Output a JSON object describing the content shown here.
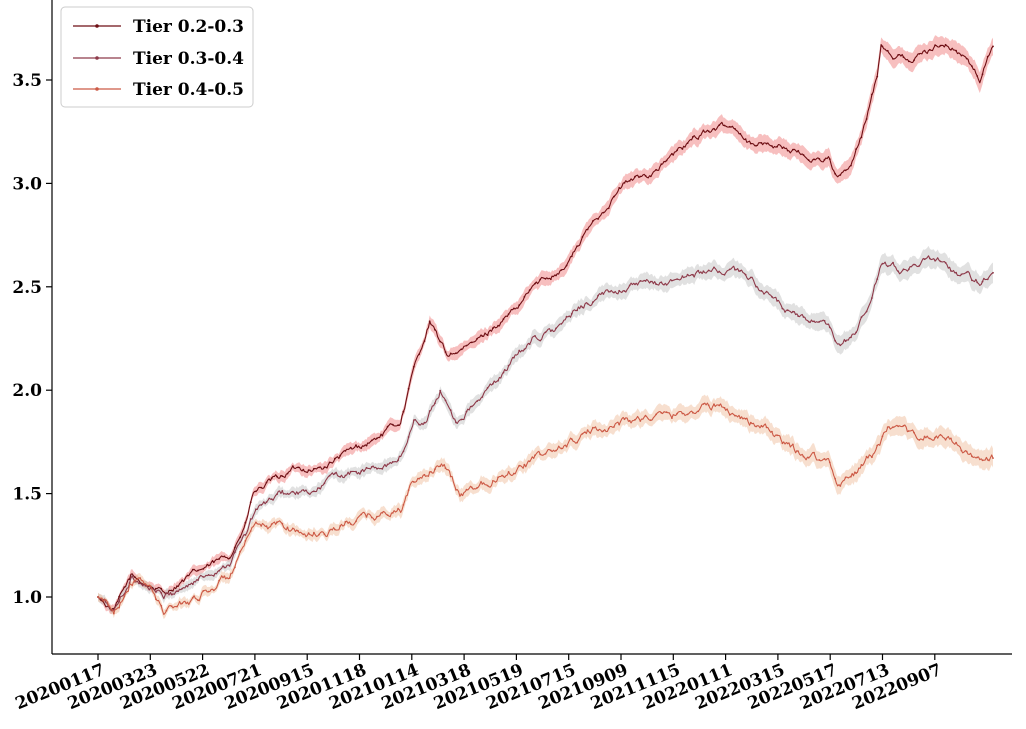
{
  "chart_data": {
    "type": "line",
    "title": "",
    "xlabel": "",
    "ylabel": "",
    "x_ticks": [
      "20200117",
      "20200323",
      "20200522",
      "20200721",
      "20200915",
      "20201118",
      "20210114",
      "20210318",
      "20210519",
      "20210715",
      "20210909",
      "20211115",
      "20220111",
      "20220315",
      "20220517",
      "20220713",
      "20220907"
    ],
    "y_ticks": [
      "1.0",
      "1.5",
      "2.0",
      "2.5",
      "3.0",
      "3.5"
    ],
    "ylim": [
      0.75,
      3.78
    ],
    "n_points": 680,
    "grid": false,
    "legend": "top-left",
    "series": [
      {
        "name": "Tier 0.2-0.3",
        "color": "#6e0f14",
        "band_color": "#f08080",
        "anchors": [
          [
            0,
            1.0
          ],
          [
            12,
            0.93
          ],
          [
            25,
            1.1
          ],
          [
            38,
            1.06
          ],
          [
            50,
            1.02
          ],
          [
            75,
            1.12
          ],
          [
            100,
            1.2
          ],
          [
            112,
            1.35
          ],
          [
            118,
            1.5
          ],
          [
            130,
            1.55
          ],
          [
            150,
            1.62
          ],
          [
            170,
            1.62
          ],
          [
            190,
            1.7
          ],
          [
            210,
            1.76
          ],
          [
            230,
            1.85
          ],
          [
            240,
            2.1
          ],
          [
            252,
            2.33
          ],
          [
            265,
            2.17
          ],
          [
            282,
            2.21
          ],
          [
            300,
            2.3
          ],
          [
            320,
            2.4
          ],
          [
            330,
            2.5
          ],
          [
            355,
            2.6
          ],
          [
            375,
            2.8
          ],
          [
            400,
            3.0
          ],
          [
            420,
            3.05
          ],
          [
            440,
            3.15
          ],
          [
            460,
            3.25
          ],
          [
            475,
            3.27
          ],
          [
            485,
            3.27
          ],
          [
            495,
            3.2
          ],
          [
            520,
            3.18
          ],
          [
            540,
            3.12
          ],
          [
            555,
            3.12
          ],
          [
            562,
            3.02
          ],
          [
            572,
            3.08
          ],
          [
            580,
            3.22
          ],
          [
            592,
            3.52
          ],
          [
            595,
            3.68
          ],
          [
            605,
            3.62
          ],
          [
            620,
            3.6
          ],
          [
            640,
            3.68
          ],
          [
            650,
            3.65
          ],
          [
            660,
            3.6
          ],
          [
            670,
            3.5
          ],
          [
            680,
            3.67
          ]
        ]
      },
      {
        "name": "Tier 0.3-0.4",
        "color": "#8e3a4a",
        "band_color": "#c8c8c8",
        "anchors": [
          [
            0,
            1.0
          ],
          [
            12,
            0.93
          ],
          [
            25,
            1.09
          ],
          [
            38,
            1.06
          ],
          [
            50,
            1.0
          ],
          [
            75,
            1.08
          ],
          [
            100,
            1.17
          ],
          [
            112,
            1.3
          ],
          [
            120,
            1.42
          ],
          [
            140,
            1.5
          ],
          [
            165,
            1.5
          ],
          [
            175,
            1.57
          ],
          [
            195,
            1.6
          ],
          [
            220,
            1.63
          ],
          [
            232,
            1.7
          ],
          [
            240,
            1.85
          ],
          [
            250,
            1.85
          ],
          [
            260,
            2.0
          ],
          [
            272,
            1.85
          ],
          [
            290,
            1.95
          ],
          [
            310,
            2.1
          ],
          [
            330,
            2.25
          ],
          [
            350,
            2.3
          ],
          [
            370,
            2.42
          ],
          [
            400,
            2.5
          ],
          [
            430,
            2.52
          ],
          [
            460,
            2.57
          ],
          [
            480,
            2.58
          ],
          [
            495,
            2.55
          ],
          [
            510,
            2.45
          ],
          [
            530,
            2.35
          ],
          [
            545,
            2.33
          ],
          [
            555,
            2.3
          ],
          [
            562,
            2.2
          ],
          [
            575,
            2.28
          ],
          [
            585,
            2.4
          ],
          [
            595,
            2.6
          ],
          [
            610,
            2.58
          ],
          [
            625,
            2.62
          ],
          [
            640,
            2.63
          ],
          [
            650,
            2.58
          ],
          [
            660,
            2.55
          ],
          [
            670,
            2.52
          ],
          [
            680,
            2.58
          ]
        ]
      },
      {
        "name": "Tier 0.4-0.5",
        "color": "#cc5a46",
        "band_color": "#f0c0a0",
        "anchors": [
          [
            0,
            1.0
          ],
          [
            12,
            0.93
          ],
          [
            25,
            1.08
          ],
          [
            38,
            1.06
          ],
          [
            50,
            0.93
          ],
          [
            75,
            1.0
          ],
          [
            100,
            1.1
          ],
          [
            112,
            1.25
          ],
          [
            120,
            1.33
          ],
          [
            140,
            1.35
          ],
          [
            160,
            1.3
          ],
          [
            175,
            1.32
          ],
          [
            200,
            1.38
          ],
          [
            230,
            1.42
          ],
          [
            240,
            1.55
          ],
          [
            255,
            1.62
          ],
          [
            265,
            1.62
          ],
          [
            275,
            1.5
          ],
          [
            290,
            1.55
          ],
          [
            310,
            1.6
          ],
          [
            330,
            1.66
          ],
          [
            350,
            1.72
          ],
          [
            375,
            1.8
          ],
          [
            400,
            1.85
          ],
          [
            420,
            1.87
          ],
          [
            440,
            1.88
          ],
          [
            460,
            1.92
          ],
          [
            475,
            1.92
          ],
          [
            495,
            1.85
          ],
          [
            510,
            1.8
          ],
          [
            530,
            1.7
          ],
          [
            545,
            1.68
          ],
          [
            555,
            1.65
          ],
          [
            562,
            1.55
          ],
          [
            575,
            1.6
          ],
          [
            590,
            1.7
          ],
          [
            600,
            1.8
          ],
          [
            620,
            1.78
          ],
          [
            640,
            1.77
          ],
          [
            650,
            1.75
          ],
          [
            660,
            1.7
          ],
          [
            670,
            1.65
          ],
          [
            680,
            1.67
          ]
        ]
      }
    ]
  }
}
